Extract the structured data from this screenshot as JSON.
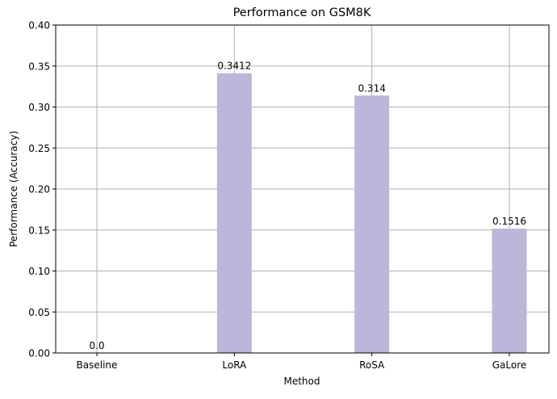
{
  "chart_data": {
    "type": "bar",
    "title": "Performance on GSM8K",
    "xlabel": "Method",
    "ylabel": "Performance (Accuracy)",
    "categories": [
      "Baseline",
      "LoRA",
      "RoSA",
      "GaLore"
    ],
    "values": [
      0.0,
      0.3412,
      0.314,
      0.1516
    ],
    "value_labels": [
      "0.0",
      "0.3412",
      "0.314",
      "0.1516"
    ],
    "ylim": [
      0,
      0.4
    ],
    "yticks": [
      0.0,
      0.05,
      0.1,
      0.15,
      0.2,
      0.25,
      0.3,
      0.35,
      0.4
    ],
    "ytick_labels": [
      "0.00",
      "0.05",
      "0.10",
      "0.15",
      "0.20",
      "0.25",
      "0.30",
      "0.35",
      "0.40"
    ],
    "grid": true,
    "colors": {
      "bar": "#bdb6da",
      "grid": "#b0b0b0",
      "axis": "#000000"
    }
  }
}
